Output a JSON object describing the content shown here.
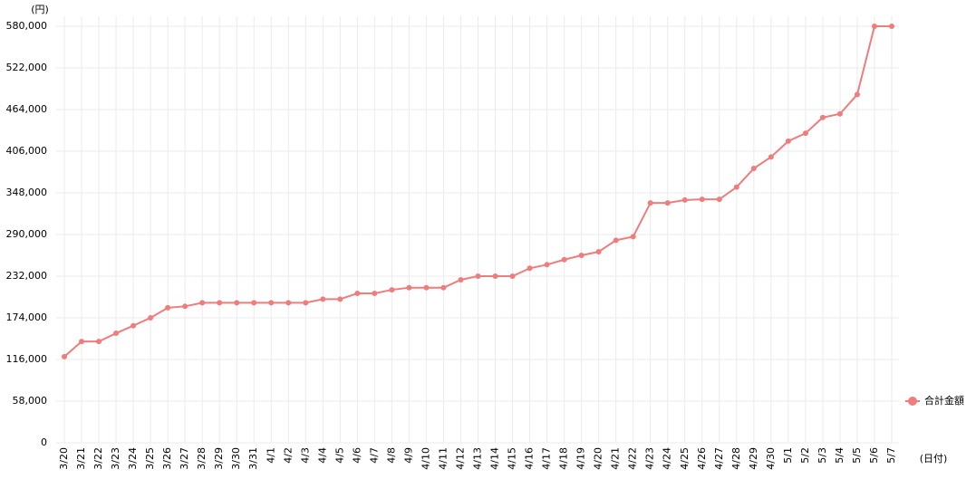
{
  "chart_data": {
    "type": "line",
    "y_label": "(円)",
    "x_label": "(日付)",
    "categories": [
      "3/20",
      "3/21",
      "3/22",
      "3/23",
      "3/24",
      "3/25",
      "3/26",
      "3/27",
      "3/28",
      "3/29",
      "3/30",
      "3/31",
      "4/1",
      "4/2",
      "4/3",
      "4/4",
      "4/5",
      "4/6",
      "4/7",
      "4/8",
      "4/9",
      "4/10",
      "4/11",
      "4/12",
      "4/13",
      "4/14",
      "4/15",
      "4/16",
      "4/17",
      "4/18",
      "4/19",
      "4/20",
      "4/21",
      "4/22",
      "4/23",
      "4/24",
      "4/25",
      "4/26",
      "4/27",
      "4/28",
      "4/29",
      "4/30",
      "5/1",
      "5/2",
      "5/3",
      "5/4",
      "5/5",
      "5/6",
      "5/7"
    ],
    "series": [
      {
        "name": "合計金額",
        "color": "#f07c7c",
        "values": [
          120000,
          141000,
          141000,
          152500,
          163000,
          174000,
          188000,
          190000,
          195000,
          195000,
          195000,
          195000,
          195000,
          195000,
          195000,
          200000,
          200000,
          208000,
          208000,
          213000,
          216000,
          216000,
          216000,
          227000,
          232000,
          232000,
          232000,
          243000,
          248000,
          255000,
          261000,
          266000,
          282000,
          287000,
          334000,
          334000,
          338000,
          339000,
          339000,
          356000,
          382000,
          398000,
          420000,
          431000,
          453000,
          458000,
          485000,
          580000,
          580000
        ]
      }
    ],
    "ylim": [
      0,
      580000
    ],
    "yticks": [
      0,
      {
        "value": 58000,
        "label": "58,000"
      },
      {
        "value": 116000,
        "label": "116,000"
      },
      {
        "value": 174000,
        "label": "174,000"
      },
      {
        "value": 232000,
        "label": "232,000"
      },
      {
        "value": 290000,
        "label": "290,000"
      },
      {
        "value": 348000,
        "label": "348,000"
      },
      {
        "value": 406000,
        "label": "406,000"
      },
      {
        "value": 464000,
        "label": "464,000"
      },
      {
        "value": 522000,
        "label": "522,000"
      },
      {
        "value": 580000,
        "label": "580,000"
      }
    ],
    "grid": true,
    "legend": "right"
  }
}
